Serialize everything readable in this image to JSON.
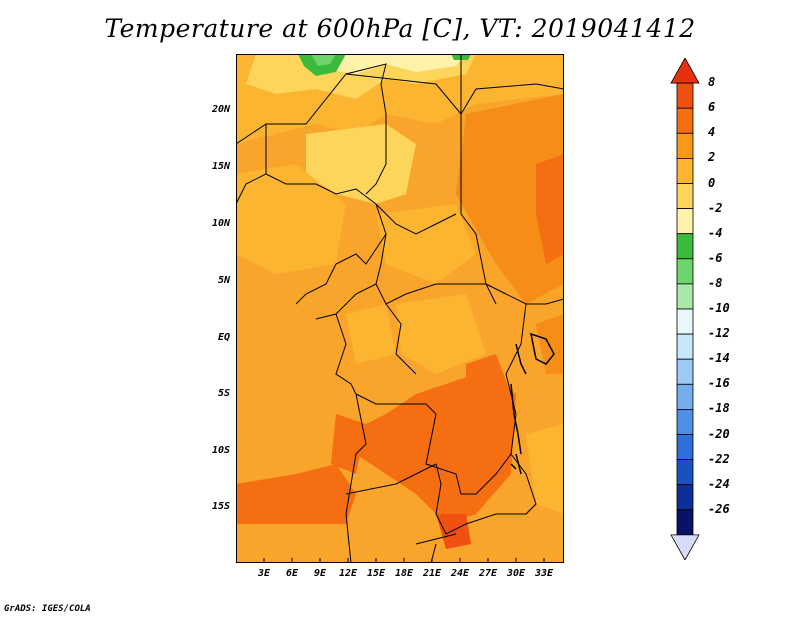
{
  "title": "Temperature at 600hPa [C], VT: 2019041412",
  "credit": "GrADS: IGES/COLA",
  "map": {
    "lat_labels": [
      "20N",
      "15N",
      "10N",
      "5N",
      "EQ",
      "5S",
      "10S",
      "15S"
    ],
    "lon_labels": [
      "3E",
      "6E",
      "9E",
      "12E",
      "15E",
      "18E",
      "21E",
      "24E",
      "27E",
      "30E",
      "33E"
    ]
  },
  "colorbar": {
    "labels": [
      "8",
      "6",
      "4",
      "2",
      "0",
      "-2",
      "-4",
      "-6",
      "-8",
      "-10",
      "-12",
      "-14",
      "-16",
      "-18",
      "-20",
      "-22",
      "-24",
      "-26"
    ],
    "colors": [
      "#e6300f",
      "#f05010",
      "#f56e12",
      "#f89a18",
      "#fbb530",
      "#fdd55a",
      "#fef2a8",
      "#3cba3c",
      "#6ed46e",
      "#aae8aa",
      "#e8f8f8",
      "#c8e6fa",
      "#9dcaf5",
      "#74aeef",
      "#4c8fe5",
      "#2e6fd8",
      "#1a50c0",
      "#0e2f9a",
      "#0a1266",
      "#d8dcf8"
    ]
  }
}
